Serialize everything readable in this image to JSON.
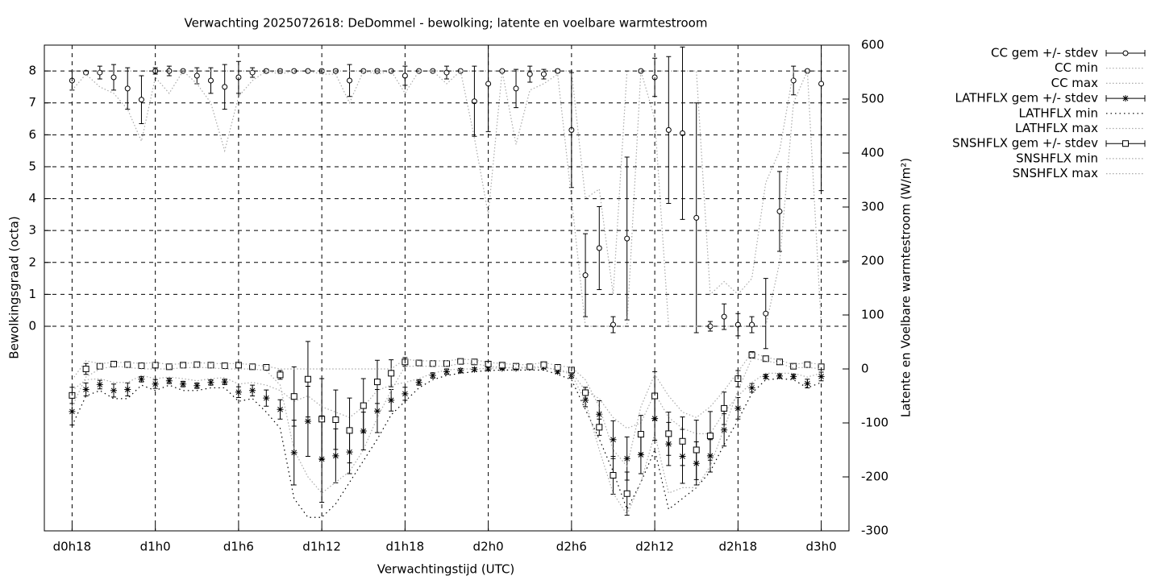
{
  "chart_data": {
    "type": "line",
    "title": "Verwachting 2025072618: DeDommel - bewolking; latente en voelbare warmtestroom",
    "xlabel": "Verwachtingstijd (UTC)",
    "ylabel": "Bewolkingsgraad (octa)",
    "y2label": "Latente en Voelbare warmtestroom (W/m²)",
    "grid": true,
    "legend": "top-right",
    "x": [
      18,
      19,
      20,
      21,
      22,
      23,
      24,
      25,
      26,
      27,
      28,
      29,
      30,
      31,
      32,
      33,
      34,
      35,
      36,
      37,
      38,
      39,
      40,
      41,
      42,
      43,
      44,
      45,
      46,
      47,
      48,
      49,
      50,
      51,
      52,
      53,
      54,
      55,
      56,
      57,
      58,
      59,
      60,
      61,
      62,
      63,
      64,
      65,
      66,
      67,
      68,
      69,
      70,
      71,
      72
    ],
    "xlim": [
      16,
      74
    ],
    "xticks": [
      {
        "value": 18,
        "label": "d0h18"
      },
      {
        "value": 24,
        "label": "d1h0"
      },
      {
        "value": 30,
        "label": "d1h6"
      },
      {
        "value": 36,
        "label": "d1h12"
      },
      {
        "value": 42,
        "label": "d1h18"
      },
      {
        "value": 48,
        "label": "d2h0"
      },
      {
        "value": 54,
        "label": "d2h6"
      },
      {
        "value": 60,
        "label": "d2h12"
      },
      {
        "value": 66,
        "label": "d2h18"
      },
      {
        "value": 72,
        "label": "d3h0"
      }
    ],
    "ylim": [
      -6.41,
      8.81
    ],
    "yticks": [
      0,
      1,
      2,
      3,
      4,
      5,
      6,
      7,
      8
    ],
    "y2lim": [
      -300,
      600
    ],
    "y2ticks": [
      -300,
      -200,
      -100,
      0,
      100,
      200,
      300,
      400,
      500,
      600
    ],
    "series": [
      {
        "name": "CC gem +/- stdev",
        "color": "#000000",
        "marker": "circle",
        "values": [
          7.7,
          7.95,
          7.95,
          7.8,
          7.45,
          7.1,
          8.0,
          8.0,
          8.0,
          7.85,
          7.7,
          7.5,
          7.8,
          7.95,
          8.0,
          8.0,
          8.0,
          8.0,
          8.0,
          8.0,
          7.7,
          8.0,
          8.0,
          8.0,
          7.85,
          8.0,
          8.0,
          7.95,
          8.0,
          7.05,
          7.6,
          8.0,
          7.45,
          7.9,
          7.9,
          8.0,
          6.15,
          1.6,
          2.45,
          0.05,
          2.75,
          8.0,
          7.8,
          6.15,
          6.05,
          3.4,
          0.0,
          0.3,
          0.05,
          0.05,
          0.4,
          3.6,
          7.7,
          8.0,
          7.6
        ],
        "errors": [
          0.3,
          0.05,
          0.2,
          0.4,
          0.65,
          0.75,
          0.1,
          0.15,
          0,
          0.25,
          0.4,
          0.7,
          0.5,
          0.15,
          0.05,
          0.05,
          0,
          0,
          0.05,
          0.05,
          0.5,
          0,
          0.05,
          0,
          0.3,
          0,
          0,
          0.2,
          0,
          1.1,
          1.5,
          0,
          0.6,
          0.25,
          0.15,
          0.05,
          1.8,
          1.3,
          1.3,
          0.25,
          2.55,
          0,
          0.6,
          2.3,
          2.7,
          3.6,
          0.15,
          0.4,
          0.35,
          0.25,
          1.1,
          1.25,
          0.45,
          0,
          3.35
        ]
      },
      {
        "name": "CC min",
        "color": "#aaaaaa",
        "dash": "dotted",
        "values": [
          7.4,
          7.9,
          7.5,
          7.3,
          6.8,
          5.8,
          7.8,
          7.3,
          8,
          7.6,
          7.0,
          5.5,
          7.2,
          7.7,
          8,
          7.9,
          8,
          8,
          7.9,
          7.9,
          7.0,
          8,
          7.9,
          8,
          7.3,
          8,
          8,
          7.6,
          8,
          5.9,
          3.5,
          8,
          5.7,
          7.4,
          7.6,
          7.9,
          4.0,
          0,
          0,
          0,
          0,
          8,
          6.5,
          0,
          0,
          0,
          0,
          0,
          0,
          0,
          0,
          2.0,
          7.0,
          8,
          0
        ]
      },
      {
        "name": "CC max",
        "color": "#aaaaaa",
        "dash": "dotted",
        "values": [
          8,
          8,
          8,
          8,
          8,
          8,
          8,
          8,
          8,
          8,
          8,
          8,
          8,
          8,
          8,
          8,
          8,
          8,
          8,
          8,
          8,
          8,
          8,
          8,
          8,
          8,
          8,
          8,
          8,
          8,
          8,
          8,
          8,
          8,
          8,
          8,
          8,
          4.0,
          4.3,
          1.0,
          8,
          8,
          8,
          8,
          8,
          8,
          1.0,
          1.4,
          1.0,
          1.5,
          4.5,
          5.5,
          8,
          8,
          8
        ]
      },
      {
        "name": "LATHFLX gem +/- stdev",
        "color": "#000000",
        "marker": "star",
        "axis": "y2",
        "values": [
          -79,
          -38,
          -29,
          -40,
          -38,
          -19,
          -28,
          -22,
          -28,
          -31,
          -25,
          -24,
          -43,
          -40,
          -54,
          -75,
          -155,
          -97,
          -167,
          -161,
          -154,
          -115,
          -78,
          -58,
          -46,
          -25,
          -12,
          -5,
          -3,
          -1,
          0,
          1,
          1,
          3,
          3,
          -5,
          -12,
          -58,
          -84,
          -131,
          -166,
          -159,
          -92,
          -139,
          -162,
          -175,
          -161,
          -113,
          -73,
          -35,
          -14,
          -13,
          -14,
          -27,
          -14
        ],
        "errors": [
          25,
          12,
          8,
          12,
          12,
          5,
          8,
          5,
          5,
          5,
          5,
          5,
          10,
          10,
          15,
          18,
          60,
          65,
          80,
          50,
          40,
          35,
          40,
          20,
          12,
          5,
          5,
          5,
          4,
          3,
          3,
          2,
          2,
          2,
          2,
          3,
          5,
          12,
          25,
          35,
          40,
          35,
          40,
          40,
          50,
          40,
          30,
          30,
          20,
          8,
          4,
          4,
          4,
          8,
          8
        ]
      },
      {
        "name": "LATHFLX min",
        "color": "#000000",
        "dash": "sparse",
        "axis": "y2",
        "values": [
          -105,
          -50,
          -40,
          -55,
          -55,
          -30,
          -40,
          -30,
          -40,
          -40,
          -35,
          -35,
          -60,
          -55,
          -80,
          -110,
          -240,
          -275,
          -275,
          -250,
          -210,
          -170,
          -130,
          -85,
          -60,
          -35,
          -20,
          -12,
          -8,
          -5,
          -3,
          -2,
          -2,
          -2,
          -2,
          -10,
          -20,
          -75,
          -130,
          -190,
          -260,
          -210,
          -150,
          -260,
          -240,
          -220,
          -190,
          -140,
          -95,
          -45,
          -20,
          -18,
          -20,
          -35,
          -25
        ]
      },
      {
        "name": "LATHFLX max",
        "color": "#aaaaaa",
        "dash": "dotted",
        "axis": "y2",
        "values": [
          -40,
          -20,
          -18,
          -25,
          -25,
          -12,
          -18,
          -15,
          -18,
          -22,
          -18,
          -16,
          -28,
          -25,
          -30,
          -40,
          -60,
          -50,
          -70,
          -80,
          -90,
          -70,
          -40,
          -30,
          -25,
          -18,
          -8,
          -2,
          0,
          0,
          1,
          2,
          2,
          4,
          4,
          -2,
          -6,
          -40,
          -55,
          -90,
          -110,
          -100,
          -45,
          -90,
          -110,
          -120,
          -120,
          -80,
          -50,
          -25,
          -8,
          -8,
          -8,
          -15,
          -8
        ]
      },
      {
        "name": "SNSHFLX gem +/- stdev",
        "color": "#000000",
        "marker": "square",
        "axis": "y2",
        "values": [
          -49,
          0,
          5,
          9,
          8,
          6,
          7,
          4,
          7,
          8,
          7,
          6,
          7,
          4,
          3,
          -11,
          -51,
          -19,
          -93,
          -94,
          -114,
          -68,
          -24,
          -8,
          13,
          11,
          10,
          10,
          14,
          13,
          9,
          7,
          5,
          4,
          8,
          3,
          -2,
          -44,
          -108,
          -197,
          -231,
          -121,
          -50,
          -120,
          -134,
          -150,
          -124,
          -73,
          -18,
          26,
          19,
          13,
          5,
          8,
          4
        ],
        "errors": [
          15,
          10,
          3,
          3,
          3,
          3,
          5,
          3,
          3,
          3,
          3,
          3,
          5,
          3,
          3,
          8,
          55,
          70,
          75,
          55,
          60,
          50,
          40,
          25,
          8,
          5,
          5,
          5,
          4,
          4,
          4,
          3,
          3,
          3,
          3,
          3,
          4,
          10,
          15,
          35,
          40,
          35,
          45,
          40,
          45,
          55,
          45,
          30,
          15,
          6,
          3,
          3,
          3,
          3,
          3
        ]
      },
      {
        "name": "SNSHFLX min",
        "color": "#aaaaaa",
        "dash": "dotted",
        "axis": "y2",
        "values": [
          -70,
          -15,
          0,
          5,
          3,
          0,
          0,
          0,
          2,
          3,
          2,
          0,
          0,
          0,
          -3,
          -30,
          -150,
          -200,
          -230,
          -210,
          -190,
          -150,
          -90,
          -40,
          5,
          5,
          5,
          5,
          10,
          10,
          5,
          3,
          2,
          1,
          3,
          -2,
          -10,
          -60,
          -150,
          -230,
          -270,
          -210,
          -120,
          -230,
          -220,
          -220,
          -180,
          -110,
          -40,
          20,
          15,
          10,
          2,
          3,
          0
        ]
      },
      {
        "name": "SNSHFLX max",
        "color": "#aaaaaa",
        "dash": "dotted",
        "axis": "y2",
        "values": [
          -20,
          15,
          10,
          12,
          12,
          10,
          12,
          8,
          10,
          12,
          10,
          10,
          10,
          8,
          5,
          0,
          0,
          0,
          0,
          0,
          0,
          0,
          0,
          0,
          18,
          15,
          15,
          15,
          18,
          17,
          12,
          10,
          8,
          8,
          12,
          6,
          3,
          -20,
          -70,
          -150,
          -180,
          -70,
          -10,
          -50,
          -80,
          -90,
          -70,
          -40,
          -5,
          30,
          22,
          16,
          8,
          12,
          8
        ]
      }
    ]
  }
}
